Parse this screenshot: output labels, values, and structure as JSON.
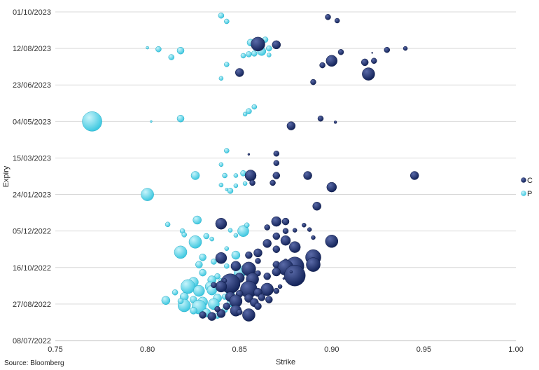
{
  "source_note": "Source: Bloomberg",
  "chart_data": {
    "type": "scatter",
    "subtype": "bubble",
    "title": "",
    "xlabel": "Strike",
    "ylabel": "Expiry",
    "xlim": [
      0.75,
      1.0
    ],
    "xticks": [
      0.75,
      0.8,
      0.85,
      0.9,
      0.95,
      1.0
    ],
    "xtick_labels": [
      "0.75",
      "0.80",
      "0.85",
      "0.90",
      "0.95",
      "1.00"
    ],
    "ylim": [
      "2022-07-08",
      "2023-10-01"
    ],
    "yticks": [
      "2022-07-08",
      "2022-08-27",
      "2022-10-16",
      "2022-12-05",
      "2023-01-24",
      "2023-03-15",
      "2023-05-04",
      "2023-06-23",
      "2023-08-12",
      "2023-10-01"
    ],
    "ytick_labels": [
      "08/07/2022",
      "27/08/2022",
      "16/10/2022",
      "05/12/2022",
      "24/01/2023",
      "15/03/2023",
      "04/05/2023",
      "23/06/2023",
      "12/08/2023",
      "01/10/2023"
    ],
    "grid": "horizontal",
    "legend_position": "right",
    "colors": {
      "C": "#14245a",
      "P": "#3ec8e0"
    },
    "series": [
      {
        "name": "C",
        "points": [
          [
            0.86,
            "2023-08-18",
            10
          ],
          [
            0.87,
            "2023-08-17",
            6
          ],
          [
            0.898,
            "2023-09-24",
            4
          ],
          [
            0.903,
            "2023-09-19",
            3.5
          ],
          [
            0.905,
            "2023-08-07",
            4
          ],
          [
            0.93,
            "2023-08-10",
            4
          ],
          [
            0.94,
            "2023-08-12",
            3
          ],
          [
            0.922,
            "2023-08-06",
            1
          ],
          [
            0.9,
            "2023-07-26",
            8
          ],
          [
            0.895,
            "2023-07-20",
            4
          ],
          [
            0.918,
            "2023-07-24",
            5
          ],
          [
            0.923,
            "2023-07-26",
            4
          ],
          [
            0.92,
            "2023-07-08",
            9
          ],
          [
            0.85,
            "2023-07-10",
            6
          ],
          [
            0.89,
            "2023-06-27",
            4
          ],
          [
            0.878,
            "2023-04-28",
            6
          ],
          [
            0.894,
            "2023-05-08",
            4
          ],
          [
            0.902,
            "2023-05-03",
            2
          ],
          [
            0.855,
            "2023-03-20",
            1.5
          ],
          [
            0.87,
            "2023-03-21",
            4
          ],
          [
            0.87,
            "2023-03-08",
            4
          ],
          [
            0.856,
            "2023-02-19",
            8
          ],
          [
            0.87,
            "2023-02-19",
            5
          ],
          [
            0.887,
            "2023-02-19",
            6
          ],
          [
            0.945,
            "2023-02-19",
            6
          ],
          [
            0.857,
            "2023-02-09",
            4
          ],
          [
            0.868,
            "2023-02-09",
            4
          ],
          [
            0.9,
            "2023-02-03",
            7
          ],
          [
            0.892,
            "2023-01-08",
            6
          ],
          [
            0.84,
            "2022-12-15",
            8
          ],
          [
            0.87,
            "2022-12-18",
            7
          ],
          [
            0.875,
            "2022-12-18",
            5
          ],
          [
            0.865,
            "2022-12-10",
            4
          ],
          [
            0.875,
            "2022-12-05",
            4
          ],
          [
            0.88,
            "2022-12-06",
            3
          ],
          [
            0.885,
            "2022-12-13",
            3
          ],
          [
            0.888,
            "2022-12-07",
            3
          ],
          [
            0.89,
            "2022-11-26",
            3
          ],
          [
            0.9,
            "2022-11-21",
            9
          ],
          [
            0.87,
            "2022-11-28",
            5
          ],
          [
            0.875,
            "2022-11-22",
            7
          ],
          [
            0.865,
            "2022-11-18",
            6
          ],
          [
            0.88,
            "2022-11-13",
            8
          ],
          [
            0.87,
            "2022-11-10",
            5
          ],
          [
            0.86,
            "2022-11-05",
            6
          ],
          [
            0.855,
            "2022-11-02",
            5
          ],
          [
            0.89,
            "2022-10-30",
            11
          ],
          [
            0.89,
            "2022-10-20",
            10
          ],
          [
            0.84,
            "2022-10-29",
            8
          ],
          [
            0.848,
            "2022-10-18",
            7
          ],
          [
            0.86,
            "2022-10-25",
            4
          ],
          [
            0.87,
            "2022-10-20",
            5
          ],
          [
            0.875,
            "2022-10-25",
            3
          ],
          [
            0.88,
            "2022-10-18",
            13
          ],
          [
            0.875,
            "2022-10-16",
            11
          ],
          [
            0.855,
            "2022-10-14",
            10
          ],
          [
            0.88,
            "2022-10-05",
            15
          ],
          [
            0.87,
            "2022-10-10",
            6
          ],
          [
            0.86,
            "2022-10-08",
            4
          ],
          [
            0.865,
            "2022-10-04",
            5
          ],
          [
            0.85,
            "2022-10-02",
            7
          ],
          [
            0.857,
            "2022-09-30",
            9
          ],
          [
            0.845,
            "2022-09-24",
            14
          ],
          [
            0.84,
            "2022-09-20",
            8
          ],
          [
            0.855,
            "2022-09-16",
            12
          ],
          [
            0.865,
            "2022-09-16",
            9
          ],
          [
            0.86,
            "2022-09-12",
            6
          ],
          [
            0.85,
            "2022-09-10",
            5
          ],
          [
            0.845,
            "2022-09-06",
            7
          ],
          [
            0.855,
            "2022-09-04",
            6
          ],
          [
            0.862,
            "2022-09-05",
            5
          ],
          [
            0.848,
            "2022-08-31",
            9
          ],
          [
            0.858,
            "2022-08-29",
            6
          ],
          [
            0.866,
            "2022-09-02",
            5
          ],
          [
            0.87,
            "2022-09-14",
            4
          ],
          [
            0.872,
            "2022-09-20",
            3
          ],
          [
            0.843,
            "2022-08-24",
            5
          ],
          [
            0.848,
            "2022-08-18",
            8
          ],
          [
            0.86,
            "2022-08-24",
            5
          ],
          [
            0.855,
            "2022-08-12",
            9
          ],
          [
            0.84,
            "2022-08-14",
            6
          ],
          [
            0.835,
            "2022-08-10",
            6
          ],
          [
            0.83,
            "2022-08-12",
            5
          ],
          [
            0.85,
            "2022-08-16",
            4
          ],
          [
            0.838,
            "2022-08-20",
            4
          ],
          [
            0.842,
            "2022-09-28",
            3
          ],
          [
            0.836,
            "2022-09-22",
            4
          ],
          [
            0.878,
            "2022-10-10",
            2
          ],
          [
            0.874,
            "2022-10-01",
            1.5
          ]
        ]
      },
      {
        "name": "P",
        "points": [
          [
            0.84,
            "2023-09-26",
            4
          ],
          [
            0.843,
            "2023-09-18",
            3.5
          ],
          [
            0.8,
            "2023-08-13",
            2
          ],
          [
            0.806,
            "2023-08-11",
            4
          ],
          [
            0.818,
            "2023-08-09",
            5
          ],
          [
            0.813,
            "2023-07-31",
            4
          ],
          [
            0.856,
            "2023-08-20",
            5
          ],
          [
            0.864,
            "2023-08-24",
            4
          ],
          [
            0.866,
            "2023-08-12",
            4
          ],
          [
            0.862,
            "2023-08-08",
            6
          ],
          [
            0.858,
            "2023-08-05",
            4
          ],
          [
            0.855,
            "2023-08-04",
            4
          ],
          [
            0.852,
            "2023-08-02",
            3.5
          ],
          [
            0.866,
            "2023-08-03",
            3
          ],
          [
            0.843,
            "2023-07-21",
            3.5
          ],
          [
            0.84,
            "2023-07-02",
            3
          ],
          [
            0.858,
            "2023-05-24",
            3.5
          ],
          [
            0.855,
            "2023-05-18",
            4
          ],
          [
            0.853,
            "2023-05-14",
            3
          ],
          [
            0.77,
            "2023-05-04",
            14
          ],
          [
            0.818,
            "2023-05-08",
            5
          ],
          [
            0.802,
            "2023-05-04",
            1.5
          ],
          [
            0.843,
            "2023-03-25",
            3.5
          ],
          [
            0.84,
            "2023-03-06",
            3
          ],
          [
            0.826,
            "2023-02-19",
            6
          ],
          [
            0.842,
            "2023-02-19",
            3.5
          ],
          [
            0.852,
            "2023-02-22",
            4
          ],
          [
            0.848,
            "2023-02-19",
            3
          ],
          [
            0.84,
            "2023-02-06",
            3
          ],
          [
            0.845,
            "2023-01-29",
            4
          ],
          [
            0.848,
            "2023-02-05",
            3
          ],
          [
            0.853,
            "2023-02-08",
            3
          ],
          [
            0.8,
            "2023-01-24",
            9
          ],
          [
            0.843,
            "2023-01-31",
            2
          ],
          [
            0.827,
            "2022-12-20",
            6
          ],
          [
            0.811,
            "2022-12-14",
            3.5
          ],
          [
            0.819,
            "2022-12-05",
            3.5
          ],
          [
            0.82,
            "2022-11-30",
            3.5
          ],
          [
            0.832,
            "2022-11-28",
            4
          ],
          [
            0.835,
            "2022-11-24",
            3
          ],
          [
            0.848,
            "2022-11-29",
            3
          ],
          [
            0.852,
            "2022-12-05",
            8
          ],
          [
            0.854,
            "2022-12-13",
            3.5
          ],
          [
            0.845,
            "2022-12-06",
            3
          ],
          [
            0.826,
            "2022-11-20",
            9
          ],
          [
            0.818,
            "2022-11-06",
            9
          ],
          [
            0.83,
            "2022-10-30",
            5
          ],
          [
            0.828,
            "2022-10-20",
            5
          ],
          [
            0.843,
            "2022-11-11",
            3
          ],
          [
            0.848,
            "2022-11-02",
            6
          ],
          [
            0.84,
            "2022-10-28",
            4
          ],
          [
            0.836,
            "2022-10-24",
            4
          ],
          [
            0.843,
            "2022-10-18",
            3.5
          ],
          [
            0.852,
            "2022-10-15",
            4
          ],
          [
            0.85,
            "2022-10-08",
            8
          ],
          [
            0.838,
            "2022-10-04",
            4
          ],
          [
            0.83,
            "2022-10-09",
            5
          ],
          [
            0.835,
            "2022-09-29",
            6
          ],
          [
            0.825,
            "2022-09-26",
            7
          ],
          [
            0.822,
            "2022-09-20",
            10
          ],
          [
            0.834,
            "2022-09-20",
            7
          ],
          [
            0.842,
            "2022-09-22",
            6
          ],
          [
            0.828,
            "2022-09-14",
            8
          ],
          [
            0.835,
            "2022-09-15",
            7
          ],
          [
            0.845,
            "2022-09-10",
            6
          ],
          [
            0.82,
            "2022-09-06",
            6
          ],
          [
            0.825,
            "2022-09-02",
            5
          ],
          [
            0.83,
            "2022-08-30",
            7
          ],
          [
            0.838,
            "2022-09-04",
            6
          ],
          [
            0.842,
            "2022-09-06",
            4
          ],
          [
            0.81,
            "2022-09-01",
            6
          ],
          [
            0.82,
            "2022-08-25",
            9
          ],
          [
            0.828,
            "2022-08-23",
            10
          ],
          [
            0.836,
            "2022-08-27",
            8
          ],
          [
            0.845,
            "2022-08-28",
            5
          ],
          [
            0.832,
            "2022-08-15",
            6
          ],
          [
            0.842,
            "2022-08-19",
            4
          ],
          [
            0.825,
            "2022-08-18",
            5
          ],
          [
            0.818,
            "2022-08-31",
            4
          ],
          [
            0.815,
            "2022-09-12",
            4
          ],
          [
            0.84,
            "2022-09-28",
            3.5
          ],
          [
            0.847,
            "2022-09-25",
            3
          ],
          [
            0.838,
            "2022-08-11",
            4
          ],
          [
            0.852,
            "2022-09-18",
            3
          ],
          [
            0.855,
            "2022-09-27",
            3
          ]
        ]
      }
    ]
  }
}
